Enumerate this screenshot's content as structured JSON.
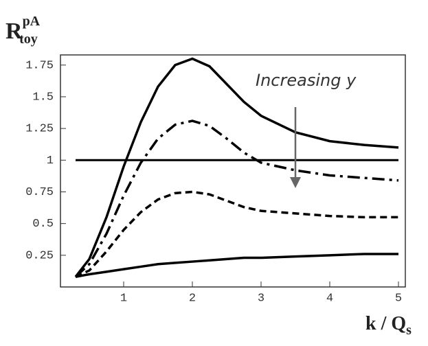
{
  "chart_data": {
    "type": "line",
    "x": [
      0.3,
      0.5,
      0.75,
      1,
      1.25,
      1.5,
      1.75,
      2,
      2.25,
      2.5,
      2.75,
      3,
      3.5,
      4,
      4.5,
      5
    ],
    "series": [
      {
        "color": "#000000",
        "dash": "solid",
        "values": [
          0.08,
          0.22,
          0.55,
          0.95,
          1.3,
          1.58,
          1.75,
          1.8,
          1.74,
          1.6,
          1.46,
          1.35,
          1.22,
          1.15,
          1.12,
          1.1
        ]
      },
      {
        "color": "#000000",
        "dash": "dashdot",
        "values": [
          0.08,
          0.18,
          0.42,
          0.72,
          0.98,
          1.17,
          1.28,
          1.31,
          1.27,
          1.17,
          1.06,
          0.98,
          0.92,
          0.88,
          0.86,
          0.84
        ]
      },
      {
        "color": "#000000",
        "dash": "dashed",
        "values": [
          0.08,
          0.13,
          0.28,
          0.45,
          0.59,
          0.69,
          0.74,
          0.75,
          0.73,
          0.68,
          0.63,
          0.6,
          0.58,
          0.56,
          0.55,
          0.55
        ]
      },
      {
        "color": "#000000",
        "dash": "solid",
        "values": [
          0.08,
          0.1,
          0.12,
          0.14,
          0.16,
          0.18,
          0.19,
          0.2,
          0.21,
          0.22,
          0.23,
          0.23,
          0.24,
          0.25,
          0.26,
          0.26
        ]
      }
    ],
    "hline": {
      "y": 1,
      "x": [
        0.3,
        5
      ]
    },
    "xlim": [
      0.08,
      5.1
    ],
    "xticks": [
      1,
      2,
      3,
      4,
      5
    ],
    "ylim": [
      0,
      1.83
    ],
    "yticks": [
      0.25,
      0.5,
      0.75,
      1,
      1.25,
      1.5,
      1.75
    ],
    "y_label": {
      "text": "R",
      "sup": "pA",
      "sub": "toy"
    },
    "x_label": {
      "text": "k / Q",
      "sub": "s"
    },
    "annotation": "Increasing y"
  }
}
